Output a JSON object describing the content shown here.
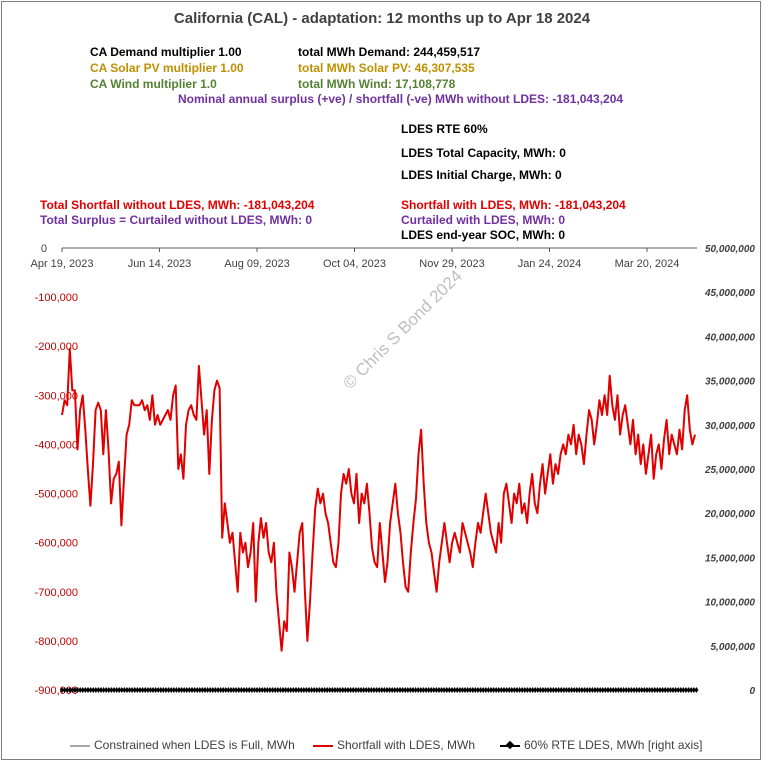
{
  "title": "California (CAL) - adaptation:  12 months up to  Apr 18 2024",
  "info": {
    "demand_mult": "CA Demand multiplier  1.00",
    "solar_mult": "CA Solar PV multiplier  1.00",
    "wind_mult": "CA Wind multiplier  1.0",
    "total_demand": "total MWh Demand:  244,459,517",
    "total_solar": "total MWh Solar PV:  46,307,535",
    "total_wind": "total MWh Wind:  17,108,778",
    "nominal": "Nominal annual surplus (+ve) / shortfall (-ve) MWh without LDES:  -181,043,204",
    "rte": "LDES RTE 60%",
    "capacity": "LDES Total Capacity, MWh:  0",
    "initial": "LDES Initial Charge, MWh:  0",
    "shortfall_without": "Total Shortfall without LDES, MWh: -181,043,204",
    "surplus_without": "Total Surplus = Curtailed without LDES, MWh: 0",
    "shortfall_with": "Shortfall with LDES, MWh: -181,043,204",
    "curtailed_with": "Curtailed with LDES, MWh: 0",
    "soc": "LDES end-year SOC, MWh: 0"
  },
  "watermark": "© Chris S Bond  2024",
  "colors": {
    "shortfall": "#e00000",
    "ldes": "#000000",
    "constrained": "#a6a6a6",
    "left_axis": "#c00000"
  },
  "chart_data": {
    "type": "line",
    "x_ticks": [
      "Apr 19, 2023",
      "Jun 14, 2023",
      "Aug 09, 2023",
      "Oct 04, 2023",
      "Nov 29, 2023",
      "Jan 24, 2024",
      "Mar 20, 2024"
    ],
    "y_left_ticks": [
      "0",
      "-100,000",
      "-200,000",
      "-300,000",
      "-400,000",
      "-500,000",
      "-600,000",
      "-700,000",
      "-800,000",
      "-900,000"
    ],
    "y_left_range": [
      -900000,
      0
    ],
    "y_right_ticks": [
      "50,000,000",
      "45,000,000",
      "40,000,000",
      "35,000,000",
      "30,000,000",
      "25,000,000",
      "20,000,000",
      "15,000,000",
      "10,000,000",
      "5,000,000",
      "0"
    ],
    "y_right_range": [
      0,
      50000000
    ],
    "x_range": [
      "2023-04-19",
      "2024-04-18"
    ],
    "grid": false,
    "legend_position": "bottom",
    "series": [
      {
        "name": "Constrained when LDES is Full, MWh",
        "axis": "left",
        "values": []
      },
      {
        "name": "Shortfall with LDES, MWh",
        "axis": "left",
        "sampled_every_days": 2,
        "values": [
          -340000,
          -310000,
          -320000,
          -205000,
          -290000,
          -290000,
          -410000,
          -330000,
          -300000,
          -370000,
          -450000,
          -525000,
          -440000,
          -330000,
          -315000,
          -330000,
          -420000,
          -330000,
          -410000,
          -520000,
          -470000,
          -460000,
          -435000,
          -565000,
          -470000,
          -380000,
          -360000,
          -310000,
          -320000,
          -320000,
          -320000,
          -310000,
          -330000,
          -320000,
          -350000,
          -300000,
          -360000,
          -340000,
          -360000,
          -350000,
          -340000,
          -330000,
          -350000,
          -300000,
          -280000,
          -450000,
          -420000,
          -470000,
          -360000,
          -330000,
          -320000,
          -340000,
          -350000,
          -240000,
          -310000,
          -380000,
          -330000,
          -460000,
          -350000,
          -290000,
          -270000,
          -285000,
          -590000,
          -520000,
          -560000,
          -600000,
          -580000,
          -640000,
          -700000,
          -580000,
          -620000,
          -600000,
          -650000,
          -620000,
          -560000,
          -720000,
          -600000,
          -550000,
          -590000,
          -560000,
          -620000,
          -640000,
          -600000,
          -700000,
          -760000,
          -820000,
          -760000,
          -780000,
          -620000,
          -650000,
          -700000,
          -640000,
          -580000,
          -560000,
          -700000,
          -800000,
          -720000,
          -620000,
          -530000,
          -490000,
          -520000,
          -500000,
          -540000,
          -560000,
          -600000,
          -640000,
          -650000,
          -600000,
          -500000,
          -460000,
          -480000,
          -450000,
          -500000,
          -520000,
          -460000,
          -560000,
          -500000,
          -520000,
          -480000,
          -540000,
          -610000,
          -640000,
          -650000,
          -560000,
          -620000,
          -680000,
          -640000,
          -560000,
          -520000,
          -480000,
          -540000,
          -580000,
          -640000,
          -690000,
          -700000,
          -620000,
          -560000,
          -510000,
          -420000,
          -370000,
          -480000,
          -560000,
          -600000,
          -620000,
          -660000,
          -700000,
          -640000,
          -600000,
          -560000,
          -600000,
          -640000,
          -600000,
          -580000,
          -600000,
          -620000,
          -560000,
          -580000,
          -600000,
          -620000,
          -650000,
          -600000,
          -560000,
          -580000,
          -540000,
          -500000,
          -540000,
          -580000,
          -600000,
          -620000,
          -560000,
          -600000,
          -500000,
          -480000,
          -520000,
          -560000,
          -500000,
          -520000,
          -480000,
          -540000,
          -520000,
          -560000,
          -500000,
          -460000,
          -520000,
          -540000,
          -480000,
          -440000,
          -500000,
          -460000,
          -420000,
          -480000,
          -440000,
          -460000,
          -420000,
          -400000,
          -420000,
          -380000,
          -400000,
          -360000,
          -420000,
          -380000,
          -400000,
          -440000,
          -380000,
          -330000,
          -350000,
          -400000,
          -360000,
          -310000,
          -340000,
          -300000,
          -340000,
          -260000,
          -320000,
          -350000,
          -300000,
          -380000,
          -340000,
          -320000,
          -360000,
          -400000,
          -350000,
          -420000,
          -380000,
          -440000,
          -400000,
          -460000,
          -420000,
          -380000,
          -470000,
          -420000,
          -400000,
          -450000,
          -390000,
          -350000,
          -420000,
          -380000,
          -400000,
          -420000,
          -370000,
          -410000,
          -330000,
          -300000,
          -370000,
          -400000,
          -380000
        ]
      },
      {
        "name": "60%  RTE LDES, MWh [right axis]",
        "axis": "right",
        "constant_value": 0
      }
    ]
  },
  "legend": {
    "constrained": "Constrained when LDES is Full, MWh",
    "shortfall": "Shortfall with LDES, MWh",
    "ldes": "60%  RTE LDES, MWh [right axis]"
  }
}
